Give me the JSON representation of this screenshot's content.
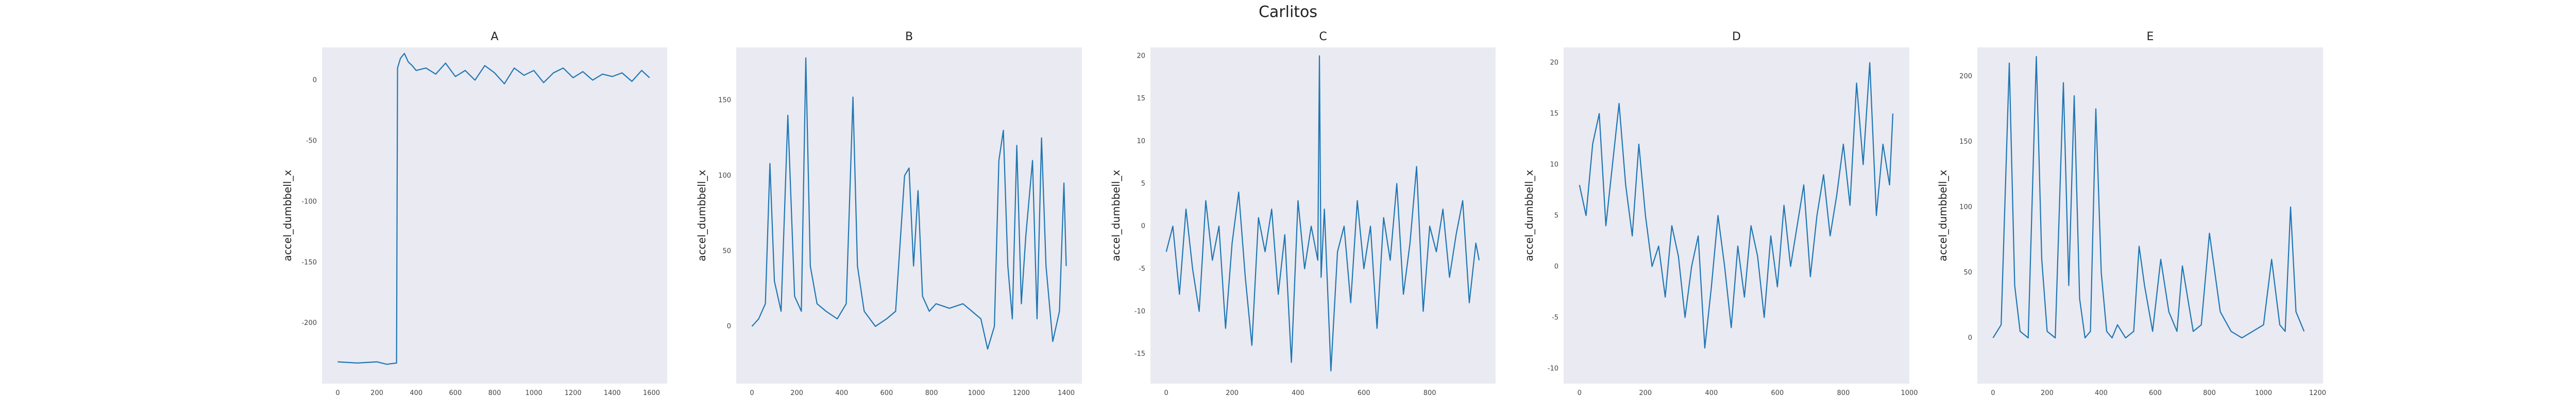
{
  "figure_title": "Carlitos",
  "chart_data": [
    {
      "type": "line",
      "title": "A",
      "xlabel": "",
      "ylabel": "accel_dumbbell_x",
      "xlim": [
        -80,
        1680
      ],
      "ylim": [
        -250,
        27
      ],
      "xticks": [
        0,
        200,
        400,
        600,
        800,
        1000,
        1200,
        1400,
        1600
      ],
      "yticks": [
        -200,
        -150,
        -100,
        -50,
        0
      ],
      "color": "#1f77b4",
      "grid": false,
      "series": [
        {
          "x": [
            0,
            100,
            200,
            250,
            300,
            305,
            320,
            340,
            360,
            380,
            400,
            450,
            500,
            550,
            600,
            650,
            700,
            750,
            800,
            850,
            900,
            950,
            1000,
            1050,
            1100,
            1150,
            1200,
            1250,
            1300,
            1350,
            1400,
            1450,
            1500,
            1550,
            1590
          ],
          "y": [
            -232,
            -233,
            -232,
            -234,
            -233,
            10,
            18,
            22,
            15,
            12,
            8,
            10,
            5,
            14,
            3,
            8,
            0,
            12,
            6,
            -3,
            10,
            4,
            8,
            -2,
            6,
            10,
            2,
            7,
            0,
            5,
            3,
            6,
            -1,
            8,
            2
          ]
        }
      ]
    },
    {
      "type": "line",
      "title": "B",
      "xlabel": "",
      "ylabel": "accel_dumbbell_x",
      "xlim": [
        -70,
        1470
      ],
      "ylim": [
        -38,
        185
      ],
      "xticks": [
        0,
        200,
        400,
        600,
        800,
        1000,
        1200,
        1400
      ],
      "yticks": [
        0,
        50,
        100,
        150
      ],
      "color": "#1f77b4",
      "grid": false,
      "series": [
        {
          "x": [
            0,
            30,
            60,
            80,
            100,
            130,
            160,
            190,
            220,
            240,
            260,
            290,
            330,
            380,
            420,
            450,
            470,
            500,
            550,
            600,
            640,
            680,
            700,
            720,
            740,
            760,
            790,
            820,
            880,
            940,
            980,
            1020,
            1050,
            1080,
            1100,
            1120,
            1140,
            1160,
            1180,
            1200,
            1220,
            1250,
            1270,
            1290,
            1310,
            1340,
            1370,
            1390,
            1400
          ],
          "y": [
            0,
            5,
            15,
            108,
            30,
            10,
            140,
            20,
            10,
            178,
            40,
            15,
            10,
            5,
            15,
            152,
            40,
            10,
            0,
            5,
            10,
            100,
            105,
            40,
            90,
            20,
            10,
            15,
            12,
            15,
            10,
            5,
            -15,
            0,
            110,
            130,
            40,
            5,
            120,
            15,
            60,
            110,
            5,
            125,
            40,
            -10,
            10,
            95,
            40
          ]
        }
      ]
    },
    {
      "type": "line",
      "title": "C",
      "xlabel": "",
      "ylabel": "accel_dumbbell_x",
      "xlim": [
        -48,
        1000
      ],
      "ylim": [
        -18.5,
        21
      ],
      "xticks": [
        0,
        200,
        400,
        600,
        800
      ],
      "yticks": [
        -15,
        -10,
        -5,
        0,
        5,
        10,
        15,
        20
      ],
      "color": "#1f77b4",
      "grid": false,
      "series": [
        {
          "x": [
            0,
            20,
            40,
            60,
            80,
            100,
            120,
            140,
            160,
            180,
            200,
            220,
            240,
            260,
            280,
            300,
            320,
            340,
            360,
            380,
            400,
            420,
            440,
            460,
            465,
            470,
            480,
            500,
            520,
            540,
            560,
            580,
            600,
            620,
            640,
            660,
            680,
            700,
            720,
            740,
            760,
            780,
            800,
            820,
            840,
            860,
            880,
            900,
            920,
            940,
            950
          ],
          "y": [
            -3,
            0,
            -8,
            2,
            -5,
            -10,
            3,
            -4,
            0,
            -12,
            -2,
            4,
            -6,
            -14,
            1,
            -3,
            2,
            -8,
            -1,
            -16,
            3,
            -5,
            0,
            -4,
            20,
            -6,
            2,
            -17,
            -3,
            0,
            -9,
            3,
            -5,
            0,
            -12,
            1,
            -4,
            5,
            -8,
            -2,
            7,
            -10,
            0,
            -3,
            2,
            -6,
            -1,
            3,
            -9,
            -2,
            -4
          ]
        }
      ]
    },
    {
      "type": "line",
      "title": "D",
      "xlabel": "",
      "ylabel": "accel_dumbbell_x",
      "xlim": [
        -48,
        1000
      ],
      "ylim": [
        -11.5,
        21.5
      ],
      "xticks": [
        0,
        200,
        400,
        600,
        800,
        1000
      ],
      "yticks": [
        -10,
        -5,
        0,
        5,
        10,
        15,
        20
      ],
      "color": "#1f77b4",
      "grid": false,
      "series": [
        {
          "x": [
            0,
            20,
            40,
            60,
            80,
            100,
            120,
            140,
            160,
            180,
            200,
            220,
            240,
            260,
            280,
            300,
            320,
            340,
            360,
            380,
            400,
            420,
            440,
            460,
            480,
            500,
            520,
            540,
            560,
            580,
            600,
            620,
            640,
            660,
            680,
            700,
            720,
            740,
            760,
            780,
            800,
            820,
            840,
            860,
            880,
            900,
            920,
            940,
            950
          ],
          "y": [
            8,
            5,
            12,
            15,
            4,
            10,
            16,
            8,
            3,
            12,
            5,
            0,
            2,
            -3,
            4,
            1,
            -5,
            0,
            3,
            -8,
            -2,
            5,
            0,
            -6,
            2,
            -3,
            4,
            1,
            -5,
            3,
            -2,
            6,
            0,
            4,
            8,
            -1,
            5,
            9,
            3,
            7,
            12,
            6,
            18,
            10,
            20,
            5,
            12,
            8,
            15
          ]
        }
      ]
    },
    {
      "type": "line",
      "title": "E",
      "xlabel": "",
      "ylabel": "accel_dumbbell_x",
      "xlim": [
        -58,
        1220
      ],
      "ylim": [
        -35,
        222
      ],
      "xticks": [
        0,
        200,
        400,
        600,
        800,
        1000,
        1200
      ],
      "yticks": [
        0,
        50,
        100,
        150,
        200
      ],
      "color": "#1f77b4",
      "grid": false,
      "series": [
        {
          "x": [
            0,
            30,
            60,
            80,
            100,
            130,
            160,
            180,
            200,
            230,
            260,
            280,
            300,
            320,
            340,
            360,
            380,
            400,
            420,
            440,
            460,
            490,
            520,
            540,
            560,
            590,
            620,
            650,
            680,
            700,
            740,
            770,
            800,
            840,
            880,
            920,
            960,
            1000,
            1030,
            1060,
            1080,
            1100,
            1120,
            1150
          ],
          "y": [
            0,
            10,
            210,
            40,
            5,
            0,
            215,
            60,
            5,
            0,
            195,
            40,
            185,
            30,
            0,
            5,
            175,
            50,
            5,
            0,
            10,
            0,
            5,
            70,
            40,
            5,
            60,
            20,
            5,
            55,
            5,
            10,
            80,
            20,
            5,
            0,
            5,
            10,
            60,
            10,
            5,
            100,
            20,
            5
          ]
        }
      ]
    }
  ]
}
